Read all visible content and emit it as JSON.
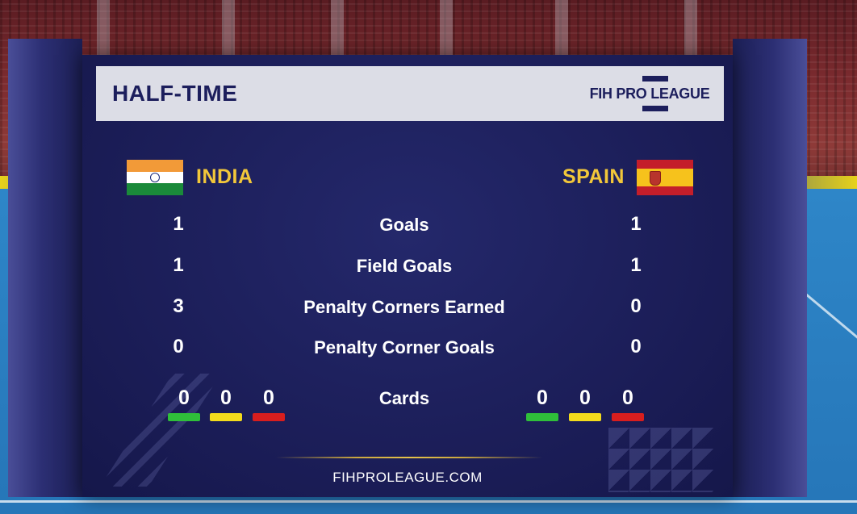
{
  "title": "HALF-TIME",
  "logo_text": "FIH PRO LEAGUE",
  "home_team": {
    "name": "INDIA"
  },
  "away_team": {
    "name": "SPAIN"
  },
  "stats": [
    {
      "label": "Goals",
      "home": "1",
      "away": "1"
    },
    {
      "label": "Field Goals",
      "home": "1",
      "away": "1"
    },
    {
      "label": "Penalty Corners Earned",
      "home": "3",
      "away": "0"
    },
    {
      "label": "Penalty Corner Goals",
      "home": "0",
      "away": "0"
    }
  ],
  "cards": {
    "label": "Cards",
    "home": {
      "green": "0",
      "yellow": "0",
      "red": "0"
    },
    "away": {
      "green": "0",
      "yellow": "0",
      "red": "0"
    }
  },
  "colors": {
    "board": "#1a1c55",
    "accent_gold": "#f2c73a",
    "green_card": "#2fbf3a",
    "yellow_card": "#f3db1c",
    "red_card": "#d81e1e"
  },
  "website": "FIHPROLEAGUE.COM"
}
